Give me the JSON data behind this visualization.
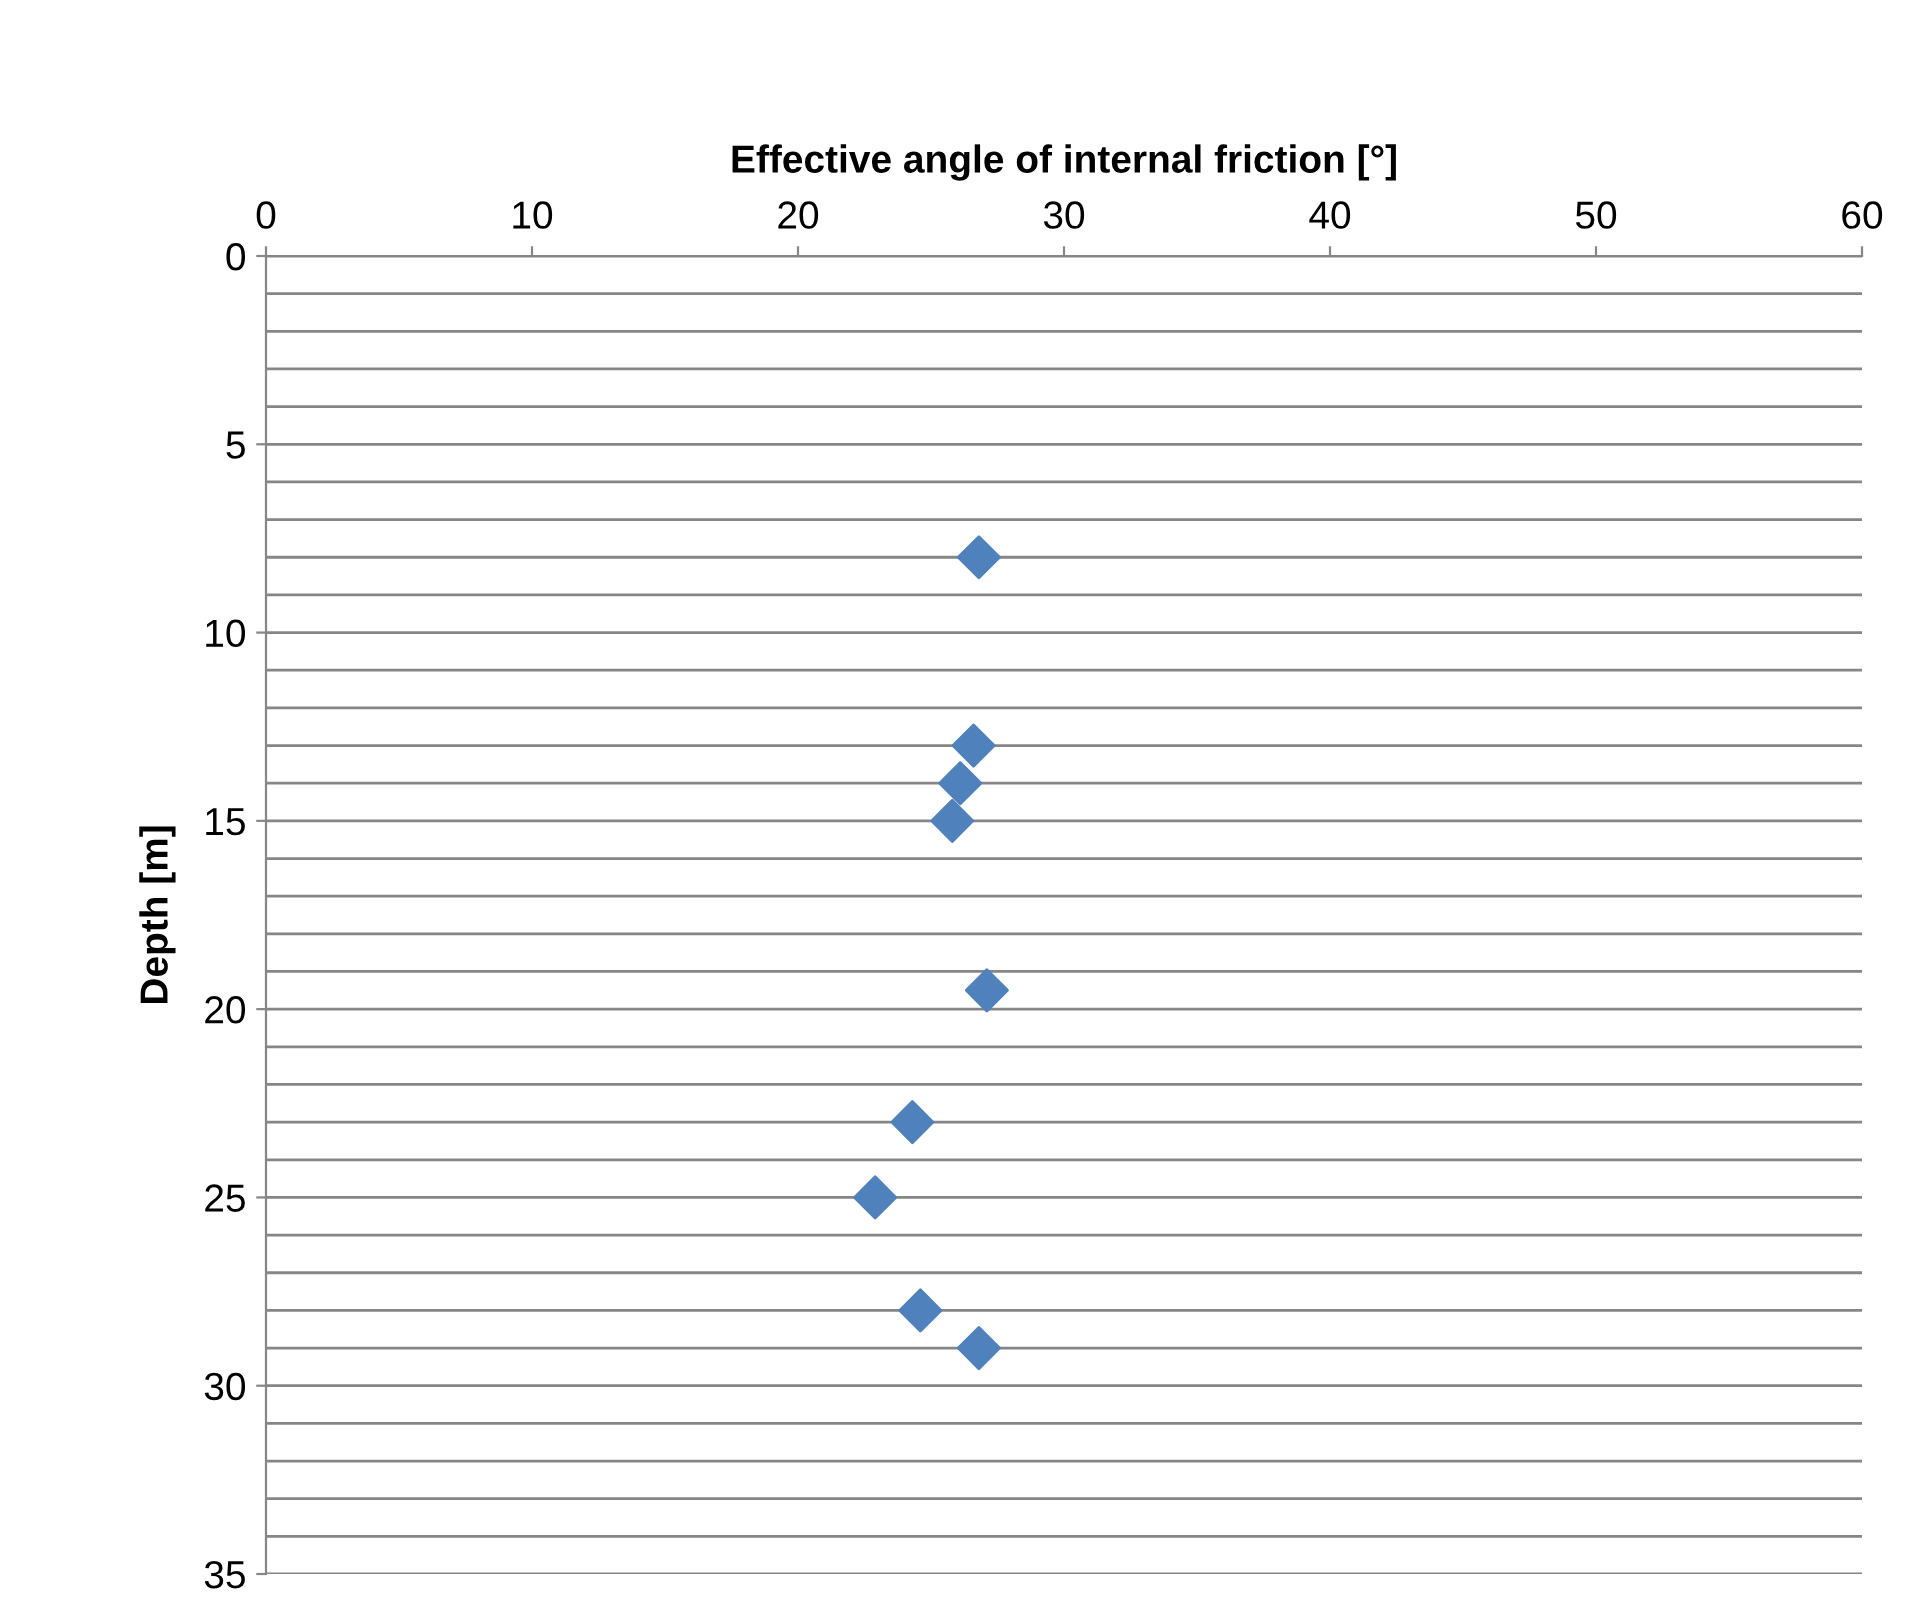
{
  "chart_data": {
    "type": "scatter",
    "xlabel": "Effective angle of internal friction [°]",
    "ylabel": "Depth [m]",
    "x": [
      26.8,
      26.6,
      26.1,
      25.8,
      27.1,
      24.3,
      22.9,
      24.6,
      26.8
    ],
    "series": [
      {
        "color": "#4f81bd",
        "values": [
          8,
          13,
          14,
          15,
          19.5,
          23,
          25,
          28,
          29
        ]
      }
    ],
    "xlim": [
      0,
      60
    ],
    "xticks": [
      0,
      10,
      20,
      30,
      40,
      50,
      60
    ],
    "ylim": [
      35,
      0
    ],
    "yticks": [
      0,
      {
        "value": 1,
        "label": null
      },
      {
        "value": 2,
        "label": null
      },
      {
        "value": 3,
        "label": null
      },
      {
        "value": 4,
        "label": null
      },
      5,
      {
        "value": 6,
        "label": null
      },
      {
        "value": 7,
        "label": null
      },
      {
        "value": 8,
        "label": null
      },
      {
        "value": 9,
        "label": null
      },
      10,
      {
        "value": 11,
        "label": null
      },
      {
        "value": 12,
        "label": null
      },
      {
        "value": 13,
        "label": null
      },
      {
        "value": 14,
        "label": null
      },
      15,
      {
        "value": 16,
        "label": null
      },
      {
        "value": 17,
        "label": null
      },
      {
        "value": 18,
        "label": null
      },
      {
        "value": 19,
        "label": null
      },
      20,
      {
        "value": 21,
        "label": null
      },
      {
        "value": 22,
        "label": null
      },
      {
        "value": 23,
        "label": null
      },
      {
        "value": 24,
        "label": null
      },
      25,
      {
        "value": 26,
        "label": null
      },
      {
        "value": 27,
        "label": null
      },
      {
        "value": 28,
        "label": null
      },
      {
        "value": 29,
        "label": null
      },
      30,
      {
        "value": 31,
        "label": null
      },
      {
        "value": 32,
        "label": null
      },
      {
        "value": 33,
        "label": null
      },
      {
        "value": 34,
        "label": null
      },
      35
    ],
    "grid": "y",
    "marker": "diamond"
  }
}
